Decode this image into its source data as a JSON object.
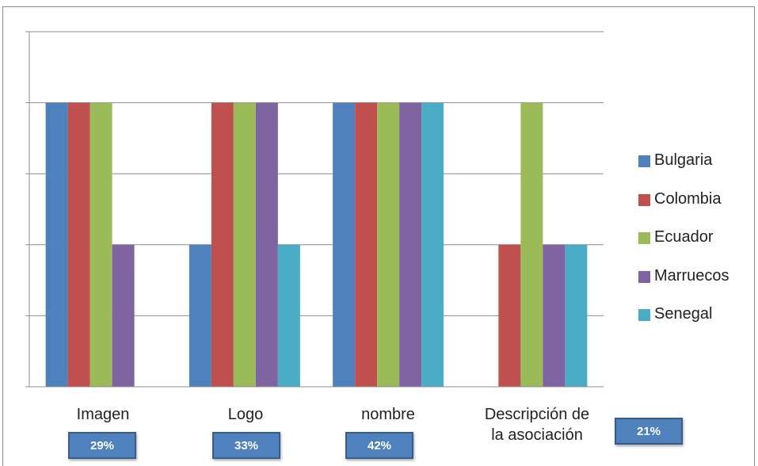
{
  "chart_data": {
    "type": "bar",
    "categories": [
      "Imagen",
      "Logo",
      "nombre",
      "Descripción de\nla asociación"
    ],
    "series": [
      {
        "name": "Bulgaria",
        "color": "#4f81bd",
        "values": [
          4,
          2,
          4,
          0
        ]
      },
      {
        "name": "Colombia",
        "color": "#c0504d",
        "values": [
          4,
          4,
          4,
          2
        ]
      },
      {
        "name": "Ecuador",
        "color": "#9bbb59",
        "values": [
          4,
          4,
          4,
          4
        ]
      },
      {
        "name": "Marruecos",
        "color": "#8064a2",
        "values": [
          2,
          4,
          4,
          2
        ]
      },
      {
        "name": "Senegal",
        "color": "#4bacc6",
        "values": [
          0,
          2,
          4,
          2
        ]
      }
    ],
    "ylim": [
      0,
      5
    ],
    "grid": true,
    "legend_position": "right",
    "annotations": [
      "29%",
      "33%",
      "42%",
      "21%"
    ]
  }
}
